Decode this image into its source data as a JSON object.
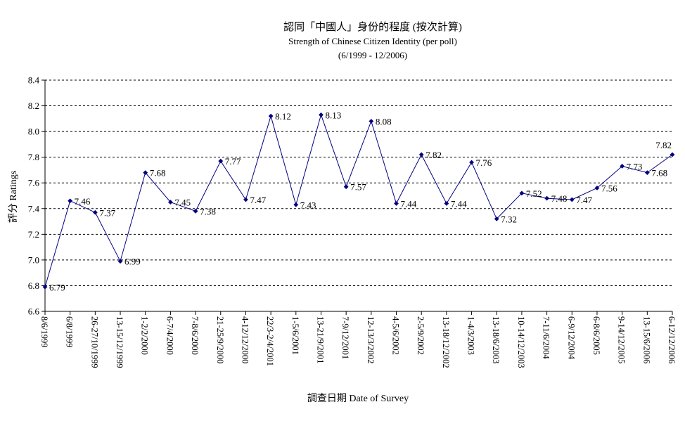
{
  "chart_data": {
    "type": "line",
    "title": "認同「中國人」身份的程度 (按次計算)",
    "subtitle": "Strength of Chinese Citizen Identity (per poll)",
    "subtitle2": "(6/1999 - 12/2006)",
    "xlabel": "調查日期 Date of Survey",
    "ylabel": "評分 Ratings",
    "ylim": [
      6.6,
      8.4
    ],
    "yticks": [
      "6.6",
      "6.8",
      "7.0",
      "7.2",
      "7.4",
      "7.6",
      "7.8",
      "8.0",
      "8.2",
      "8.4"
    ],
    "grid": true,
    "legend": "none",
    "line_color": "#000080",
    "categories": [
      "8/6/1999",
      "6/8/1999",
      "26-27/10/1999",
      "13-15/12/1999",
      "1-2/2/2000",
      "6-7/4/2000",
      "7-8/6/2000",
      "21-25/9/2000",
      "4-12/12/2000",
      "22/3-2/4/2001",
      "1-5/6/2001",
      "13-21/9/2001",
      "7-9/12/2001",
      "12-13/3/2002",
      "4-5/6/2002",
      "2-5/9/2002",
      "13-18/12/2002",
      "1-4/3/2003",
      "13-18/6/2003",
      "10-14/12/2003",
      "7-11/6/2004",
      "6-9/12/2004",
      "6-8/6/2005",
      "9-14/12/2005",
      "13-15/6/2006",
      "6-12/12/2006"
    ],
    "values": [
      6.79,
      7.46,
      7.37,
      6.99,
      7.68,
      7.45,
      7.38,
      7.77,
      7.47,
      8.12,
      7.43,
      8.13,
      7.57,
      8.08,
      7.44,
      7.82,
      7.44,
      7.76,
      7.32,
      7.52,
      7.48,
      7.47,
      7.56,
      7.73,
      7.68,
      7.82
    ],
    "data_labels": [
      "6.79",
      "7.46",
      "7.37",
      "6.99",
      "7.68",
      "7.45",
      "7.38",
      "7.77",
      "7.47",
      "8.12",
      "7.43",
      "8.13",
      "7.57",
      "8.08",
      "7.44",
      "7.82",
      "7.44",
      "7.76",
      "7.32",
      "7.52",
      "7.48",
      "7.47",
      "7.56",
      "7.73",
      "7.68",
      "7.82"
    ]
  }
}
